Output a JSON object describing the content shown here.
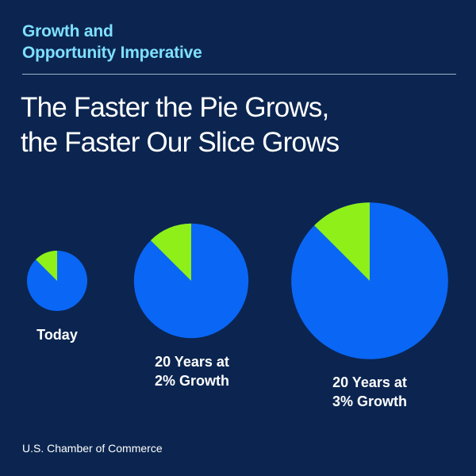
{
  "header": {
    "kicker_line1": "Growth and",
    "kicker_line2": "Opportunity Imperative",
    "title_line1": "The Faster the Pie Grows,",
    "title_line2": "the Faster Our Slice Grows"
  },
  "footer": {
    "source": "U.S. Chamber of Commerce"
  },
  "chart_data": {
    "type": "pie",
    "title": "The Faster the Pie Grows, the Faster Our Slice Grows",
    "colors": {
      "slice": "#8ef018",
      "rest": "#0a66f5",
      "background": "#0b2550"
    },
    "pies": [
      {
        "label_lines": [
          "Today"
        ],
        "relative_size": 1.0,
        "slice_share": 0.125
      },
      {
        "label_lines": [
          "20 Years at",
          "2% Growth"
        ],
        "relative_size": 1.9,
        "slice_share": 0.125
      },
      {
        "label_lines": [
          "20 Years at",
          "3% Growth"
        ],
        "relative_size": 2.6,
        "slice_share": 0.125
      }
    ]
  }
}
